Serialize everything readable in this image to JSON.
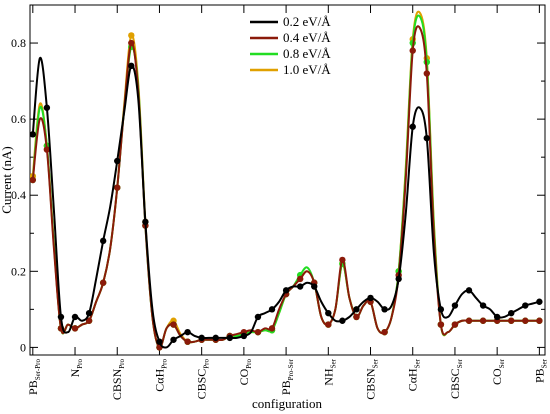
{
  "chart_data": {
    "type": "line",
    "xlabel": "configuration",
    "ylabel": "Current (nA)",
    "ylim": [
      -0.02,
      0.9
    ],
    "xlim": [
      -0.1,
      18.2
    ],
    "grid": false,
    "legend_position": "top-center",
    "y_ticks": [
      0,
      0.2,
      0.4,
      0.6,
      0.8
    ],
    "y_tick_labels": [
      "0",
      "0.2",
      "0.4",
      "0.6",
      "0.8"
    ],
    "x_tick_positions": [
      0,
      1.5,
      3,
      4.5,
      6,
      7.5,
      9,
      10.5,
      12,
      13.5,
      15,
      16.5,
      18
    ],
    "x_tick_labels": [
      {
        "main": "PB",
        "sub": "Ser-Pro"
      },
      {
        "main": "N",
        "sub": "Pro"
      },
      {
        "main": "CBSN",
        "sub": "Pro"
      },
      {
        "main": "CαH",
        "sub": "Pro"
      },
      {
        "main": "CBSC",
        "sub": "Pro"
      },
      {
        "main": "CO",
        "sub": "Pro"
      },
      {
        "main": "PB",
        "sub": "Pro-Ser"
      },
      {
        "main": "NH",
        "sub": "Ser"
      },
      {
        "main": "CBSN",
        "sub": "Ser"
      },
      {
        "main": "CαH",
        "sub": "Ser"
      },
      {
        "main": "CBSC",
        "sub": "Ser"
      },
      {
        "main": "CO",
        "sub": "Ser"
      },
      {
        "main": "PB",
        "sub": "Ser"
      }
    ],
    "x": [
      0,
      0.25,
      0.5,
      0.75,
      1.0,
      1.25,
      1.5,
      1.75,
      2.0,
      2.25,
      2.5,
      2.75,
      3.0,
      3.25,
      3.5,
      3.75,
      4.0,
      4.25,
      4.5,
      4.75,
      5.0,
      5.25,
      5.5,
      5.75,
      6.0,
      6.25,
      6.5,
      6.75,
      7.0,
      7.25,
      7.5,
      7.75,
      8.0,
      8.25,
      8.5,
      8.75,
      9.0,
      9.25,
      9.5,
      9.75,
      10.0,
      10.25,
      10.5,
      10.75,
      11.0,
      11.25,
      11.5,
      11.75,
      12.0,
      12.25,
      12.5,
      12.75,
      13.0,
      13.25,
      13.5,
      13.75,
      14.0,
      14.25,
      14.5,
      14.75,
      15.0,
      15.25,
      15.5,
      15.75,
      16.0,
      16.25,
      16.5,
      16.75,
      17.0,
      17.25,
      17.5,
      17.75,
      18.0
    ],
    "series": [
      {
        "name": "0.2 eV/Å",
        "color": "#000000",
        "values": [
          0.56,
          0.76,
          0.63,
          0.36,
          0.08,
          0.04,
          0.08,
          0.07,
          0.09,
          0.18,
          0.28,
          0.37,
          0.49,
          0.62,
          0.74,
          0.65,
          0.33,
          0.1,
          0.015,
          0.0,
          0.02,
          0.03,
          0.04,
          0.03,
          0.025,
          0.025,
          0.025,
          0.025,
          0.025,
          0.025,
          0.03,
          0.04,
          0.08,
          0.09,
          0.1,
          0.12,
          0.15,
          0.16,
          0.16,
          0.17,
          0.16,
          0.12,
          0.09,
          0.07,
          0.07,
          0.08,
          0.1,
          0.12,
          0.13,
          0.12,
          0.1,
          0.11,
          0.18,
          0.35,
          0.58,
          0.63,
          0.55,
          0.25,
          0.1,
          0.08,
          0.11,
          0.14,
          0.15,
          0.13,
          0.11,
          0.1,
          0.08,
          0.08,
          0.09,
          0.1,
          0.11,
          0.115,
          0.12
        ]
      },
      {
        "name": "0.4 eV/Å",
        "color": "#8b1a0a",
        "values": [
          0.44,
          0.6,
          0.52,
          0.26,
          0.05,
          0.06,
          0.05,
          0.06,
          0.07,
          0.12,
          0.17,
          0.26,
          0.42,
          0.63,
          0.8,
          0.67,
          0.32,
          0.08,
          0.0,
          0.05,
          0.06,
          0.03,
          0.015,
          0.015,
          0.02,
          0.02,
          0.02,
          0.02,
          0.03,
          0.035,
          0.04,
          0.045,
          0.04,
          0.05,
          0.05,
          0.1,
          0.14,
          0.16,
          0.18,
          0.2,
          0.17,
          0.08,
          0.06,
          0.1,
          0.23,
          0.13,
          0.08,
          0.11,
          0.12,
          0.05,
          0.04,
          0.08,
          0.19,
          0.44,
          0.78,
          0.84,
          0.72,
          0.3,
          0.06,
          0.04,
          0.06,
          0.07,
          0.07,
          0.07,
          0.07,
          0.07,
          0.07,
          0.07,
          0.07,
          0.07,
          0.07,
          0.07,
          0.07
        ]
      },
      {
        "name": "0.8 eV/Å",
        "color": "#22dd22",
        "values": [
          0.44,
          0.63,
          0.53,
          0.27,
          0.05,
          0.06,
          0.05,
          0.06,
          0.07,
          0.12,
          0.17,
          0.26,
          0.42,
          0.63,
          0.79,
          0.68,
          0.32,
          0.08,
          0.0,
          0.05,
          0.06,
          0.03,
          0.015,
          0.015,
          0.02,
          0.02,
          0.02,
          0.02,
          0.03,
          0.03,
          0.035,
          0.04,
          0.04,
          0.045,
          0.045,
          0.09,
          0.14,
          0.16,
          0.19,
          0.21,
          0.17,
          0.08,
          0.06,
          0.1,
          0.22,
          0.13,
          0.08,
          0.11,
          0.12,
          0.05,
          0.04,
          0.08,
          0.2,
          0.46,
          0.8,
          0.87,
          0.75,
          0.32,
          0.06,
          0.04,
          0.06,
          0.07,
          0.07,
          0.07,
          0.07,
          0.07,
          0.07,
          0.07,
          0.07,
          0.07,
          0.07,
          0.07,
          0.07
        ]
      },
      {
        "name": "1.0 eV/Å",
        "color": "#e0a000",
        "values": [
          0.45,
          0.64,
          0.53,
          0.27,
          0.05,
          0.06,
          0.05,
          0.06,
          0.07,
          0.12,
          0.17,
          0.26,
          0.42,
          0.64,
          0.82,
          0.69,
          0.33,
          0.08,
          0.0,
          0.05,
          0.07,
          0.035,
          0.015,
          0.015,
          0.02,
          0.02,
          0.02,
          0.02,
          0.03,
          0.03,
          0.035,
          0.04,
          0.04,
          0.045,
          0.045,
          0.09,
          0.14,
          0.16,
          0.18,
          0.2,
          0.17,
          0.08,
          0.06,
          0.1,
          0.22,
          0.13,
          0.08,
          0.11,
          0.12,
          0.05,
          0.04,
          0.08,
          0.2,
          0.47,
          0.81,
          0.88,
          0.76,
          0.33,
          0.06,
          0.04,
          0.06,
          0.07,
          0.07,
          0.07,
          0.07,
          0.07,
          0.07,
          0.07,
          0.07,
          0.07,
          0.07,
          0.07,
          0.07
        ]
      }
    ]
  }
}
